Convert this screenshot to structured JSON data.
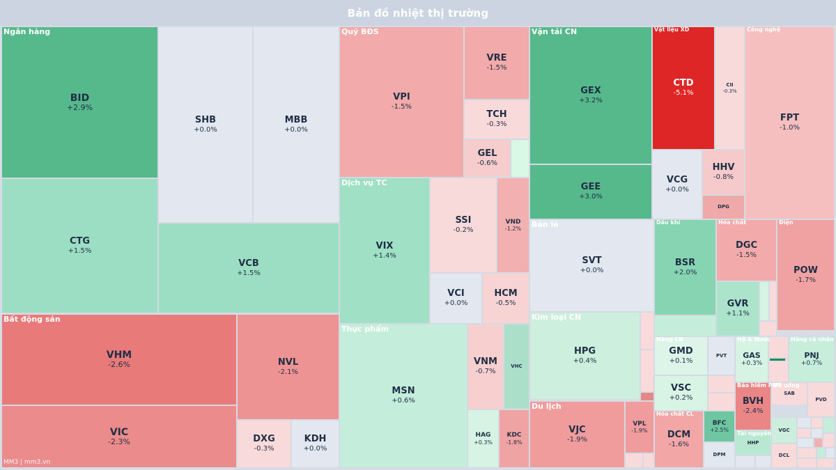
{
  "header": {
    "title": "Bản đồ nhiệt thị trường"
  },
  "footer": {
    "text": "MM3 | mm3.vn"
  },
  "colors": {
    "neutral": "#e3e8f0",
    "up_strong": "#56b98c",
    "up_mid": "#9cdec3",
    "up_light": "#c4eedb",
    "down_extreme": "#de2626",
    "down_strong": "#e87a7a",
    "down_mid": "#f0a9a9",
    "down_light": "#f9dada"
  },
  "sectors": [
    {
      "id": "ngan-hang",
      "name": "Ngân hàng"
    },
    {
      "id": "quy-bds",
      "name": "Quỹ BĐS"
    },
    {
      "id": "van-tai-cn",
      "name": "Vận tải CN"
    },
    {
      "id": "vat-lieu-xd",
      "name": "Vật liệu XD"
    },
    {
      "id": "cong-nghe",
      "name": "Công nghệ"
    },
    {
      "id": "dich-vu-tc",
      "name": "Dịch vụ TC"
    },
    {
      "id": "ban-le",
      "name": "Bán lẻ"
    },
    {
      "id": "dau-khi",
      "name": "Dầu khí"
    },
    {
      "id": "hoa-chat",
      "name": "Hóa chất"
    },
    {
      "id": "dien",
      "name": "Điện"
    },
    {
      "id": "kim-loai-cn",
      "name": "Kim loại CN"
    },
    {
      "id": "thuc-pham",
      "name": "Thực phẩm"
    },
    {
      "id": "bat-dong-san",
      "name": "Bất động sản"
    },
    {
      "id": "hang-cn",
      "name": "Hàng CN"
    },
    {
      "id": "ho-gia-dinh",
      "name": "Hộ & Nước"
    },
    {
      "id": "hang-ca-nhan",
      "name": "Hàng cá nhân"
    },
    {
      "id": "du-lich",
      "name": "Du lịch"
    },
    {
      "id": "hoa-chat-cl",
      "name": "Hóa chất CL"
    },
    {
      "id": "bao-hiem-pnt",
      "name": "Bảo hiểm PNT"
    },
    {
      "id": "do-uong",
      "name": "Đồ uống"
    },
    {
      "id": "tai-nguyen",
      "name": "Tài nguyên"
    }
  ],
  "tiles": [
    {
      "sym": "BID",
      "chg": "+2.9%",
      "color": "#56b98c"
    },
    {
      "sym": "SHB",
      "chg": "+0.0%",
      "color": "#e3e8f0"
    },
    {
      "sym": "MBB",
      "chg": "+0.0%",
      "color": "#e3e8f0"
    },
    {
      "sym": "CTG",
      "chg": "+1.5%",
      "color": "#9cdec3"
    },
    {
      "sym": "VCB",
      "chg": "+1.5%",
      "color": "#9cdec3"
    },
    {
      "sym": "VPI",
      "chg": "-1.5%",
      "color": "#f2aaaa"
    },
    {
      "sym": "VRE",
      "chg": "-1.5%",
      "color": "#f2aaaa"
    },
    {
      "sym": "TCH",
      "chg": "-0.3%",
      "color": "#f9dada"
    },
    {
      "sym": "GEL",
      "chg": "-0.6%",
      "color": "#f6cccc"
    },
    {
      "sym": "GEX",
      "chg": "+3.2%",
      "color": "#56b98c"
    },
    {
      "sym": "GEE",
      "chg": "+3.0%",
      "color": "#56b98c"
    },
    {
      "sym": "CTD",
      "chg": "-5.1%",
      "color": "#de2626"
    },
    {
      "sym": "CII",
      "chg": "-0.3%",
      "color": "#f9dada"
    },
    {
      "sym": "VCG",
      "chg": "+0.0%",
      "color": "#e3e8f0"
    },
    {
      "sym": "HHV",
      "chg": "-0.8%",
      "color": "#f6caca"
    },
    {
      "sym": "DPG",
      "chg": "",
      "color": "#f0a9a9"
    },
    {
      "sym": "FPT",
      "chg": "-1.0%",
      "color": "#f6bfbf"
    },
    {
      "sym": "VIX",
      "chg": "+1.4%",
      "color": "#a0e0c5"
    },
    {
      "sym": "SSI",
      "chg": "-0.2%",
      "color": "#f9dada"
    },
    {
      "sym": "VND",
      "chg": "-1.2%",
      "color": "#f2b0b0"
    },
    {
      "sym": "VCI",
      "chg": "+0.0%",
      "color": "#e3e8f0"
    },
    {
      "sym": "HCM",
      "chg": "-0.5%",
      "color": "#f8d3d3"
    },
    {
      "sym": "SVT",
      "chg": "+0.0%",
      "color": "#e3e8f0"
    },
    {
      "sym": "BSR",
      "chg": "+2.0%",
      "color": "#87d4b2"
    },
    {
      "sym": "DGC",
      "chg": "-1.5%",
      "color": "#f2aaaa"
    },
    {
      "sym": "GVR",
      "chg": "+1.1%",
      "color": "#abe4cb"
    },
    {
      "sym": "POW",
      "chg": "-1.7%",
      "color": "#f0a2a2"
    },
    {
      "sym": "HPG",
      "chg": "+0.4%",
      "color": "#cdefdd"
    },
    {
      "sym": "MSN",
      "chg": "+0.6%",
      "color": "#c4eedb"
    },
    {
      "sym": "VNM",
      "chg": "-0.7%",
      "color": "#f7cfcf"
    },
    {
      "sym": "VHC",
      "chg": "",
      "color": "#acdfca"
    },
    {
      "sym": "HAG",
      "chg": "+0.3%",
      "color": "#d6f3e4"
    },
    {
      "sym": "KDC",
      "chg": "-1.8%",
      "color": "#f0a3a3"
    },
    {
      "sym": "VHM",
      "chg": "-2.6%",
      "color": "#e87a7a"
    },
    {
      "sym": "VIC",
      "chg": "-2.3%",
      "color": "#ec8b8b"
    },
    {
      "sym": "NVL",
      "chg": "-2.1%",
      "color": "#ee9393"
    },
    {
      "sym": "DXG",
      "chg": "-0.3%",
      "color": "#f9dada"
    },
    {
      "sym": "KDH",
      "chg": "+0.0%",
      "color": "#e3e8f0"
    },
    {
      "sym": "GMD",
      "chg": "+0.1%",
      "color": "#dcf5e8"
    },
    {
      "sym": "PVT",
      "chg": "",
      "color": "#e3e8f0"
    },
    {
      "sym": "VSC",
      "chg": "+0.2%",
      "color": "#d8f4e5"
    },
    {
      "sym": "GAS",
      "chg": "+0.3%",
      "color": "#d6f3e4"
    },
    {
      "sym": "PNJ",
      "chg": "+0.7%",
      "color": "#c6eedb"
    },
    {
      "sym": "BVH",
      "chg": "-2.4%",
      "color": "#ea8686"
    },
    {
      "sym": "SAB",
      "chg": "",
      "color": "#f9dada"
    },
    {
      "sym": "PVD",
      "chg": "",
      "color": "#f9dada"
    },
    {
      "sym": "HHP",
      "chg": "",
      "color": "#b9e8d2"
    },
    {
      "sym": "VGC",
      "chg": "",
      "color": "#cdeedd"
    },
    {
      "sym": "DCL",
      "chg": "",
      "color": "#f9dada"
    },
    {
      "sym": "VJC",
      "chg": "-1.9%",
      "color": "#f09c9c"
    },
    {
      "sym": "VPL",
      "chg": "-1.9%",
      "color": "#f09c9c"
    },
    {
      "sym": "DCM",
      "chg": "-1.6%",
      "color": "#f2a6a6"
    },
    {
      "sym": "BFC",
      "chg": "+2.5%",
      "color": "#6ec6a0"
    },
    {
      "sym": "DPM",
      "chg": "",
      "color": "#e3e8f0"
    }
  ]
}
